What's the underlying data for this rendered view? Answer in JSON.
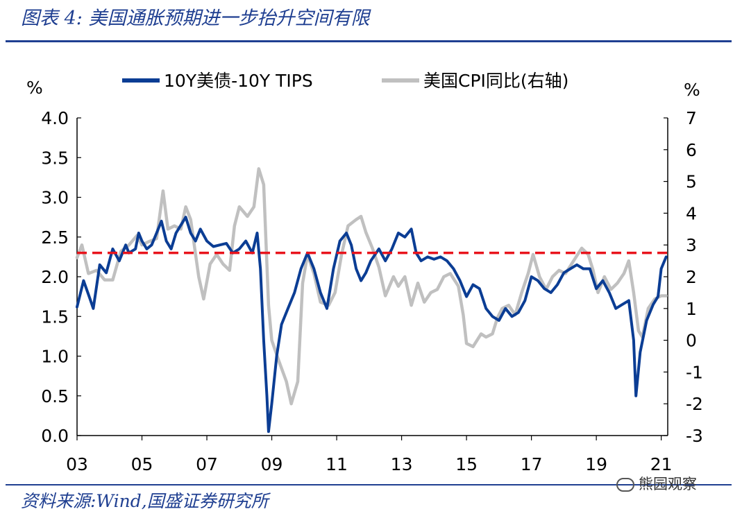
{
  "header": {
    "title": "图表 4:  美国通胀预期进一步抬升空间有限"
  },
  "footer": {
    "source": "资料来源:Wind,国盛证券研究所",
    "watermark": "熊园观察"
  },
  "colors": {
    "blue": "#0b3d94",
    "gray": "#c0c0c0",
    "red": "#e8141c",
    "accent": "#1f3f91"
  },
  "chart_data": {
    "type": "line",
    "left_unit": "%",
    "right_unit": "%",
    "x_tick_labels": [
      "03",
      "05",
      "07",
      "09",
      "11",
      "13",
      "15",
      "17",
      "19",
      "21"
    ],
    "x_range": [
      2003.0,
      2021.2
    ],
    "y_left": {
      "range": [
        0.0,
        4.0
      ],
      "ticks": [
        "0.0",
        "0.5",
        "1.0",
        "1.5",
        "2.0",
        "2.5",
        "3.0",
        "3.5",
        "4.0"
      ]
    },
    "y_right": {
      "range": [
        -3,
        7
      ],
      "ticks": [
        "-3",
        "-2",
        "-1",
        "0",
        "1",
        "2",
        "3",
        "4",
        "5",
        "6",
        "7"
      ]
    },
    "reference_line": {
      "axis": "left",
      "value": 2.3,
      "style": "dashed",
      "color": "#e8141c"
    },
    "legend": {
      "placement": "top"
    },
    "series": [
      {
        "name": "10Y美债-10Y TIPS",
        "axis": "left",
        "color": "#0b3d94",
        "points": [
          [
            2003.0,
            1.62
          ],
          [
            2003.2,
            1.95
          ],
          [
            2003.4,
            1.72
          ],
          [
            2003.5,
            1.6
          ],
          [
            2003.7,
            2.15
          ],
          [
            2003.9,
            2.05
          ],
          [
            2004.1,
            2.35
          ],
          [
            2004.3,
            2.2
          ],
          [
            2004.5,
            2.4
          ],
          [
            2004.6,
            2.3
          ],
          [
            2004.8,
            2.35
          ],
          [
            2004.9,
            2.55
          ],
          [
            2005.0,
            2.45
          ],
          [
            2005.15,
            2.35
          ],
          [
            2005.3,
            2.4
          ],
          [
            2005.45,
            2.55
          ],
          [
            2005.6,
            2.7
          ],
          [
            2005.75,
            2.45
          ],
          [
            2005.9,
            2.35
          ],
          [
            2006.05,
            2.55
          ],
          [
            2006.2,
            2.65
          ],
          [
            2006.35,
            2.75
          ],
          [
            2006.5,
            2.55
          ],
          [
            2006.65,
            2.45
          ],
          [
            2006.8,
            2.6
          ],
          [
            2007.0,
            2.45
          ],
          [
            2007.2,
            2.38
          ],
          [
            2007.4,
            2.4
          ],
          [
            2007.6,
            2.42
          ],
          [
            2007.8,
            2.3
          ],
          [
            2008.0,
            2.35
          ],
          [
            2008.2,
            2.45
          ],
          [
            2008.4,
            2.3
          ],
          [
            2008.55,
            2.55
          ],
          [
            2008.65,
            2.1
          ],
          [
            2008.75,
            1.2
          ],
          [
            2008.85,
            0.5
          ],
          [
            2008.9,
            0.05
          ],
          [
            2009.0,
            0.4
          ],
          [
            2009.15,
            1.0
          ],
          [
            2009.3,
            1.4
          ],
          [
            2009.5,
            1.6
          ],
          [
            2009.7,
            1.8
          ],
          [
            2009.9,
            2.1
          ],
          [
            2010.1,
            2.3
          ],
          [
            2010.3,
            2.1
          ],
          [
            2010.5,
            1.8
          ],
          [
            2010.7,
            1.6
          ],
          [
            2010.9,
            2.1
          ],
          [
            2011.1,
            2.45
          ],
          [
            2011.3,
            2.55
          ],
          [
            2011.45,
            2.4
          ],
          [
            2011.6,
            2.1
          ],
          [
            2011.75,
            1.95
          ],
          [
            2011.9,
            2.05
          ],
          [
            2012.05,
            2.2
          ],
          [
            2012.3,
            2.35
          ],
          [
            2012.5,
            2.2
          ],
          [
            2012.7,
            2.35
          ],
          [
            2012.9,
            2.55
          ],
          [
            2013.1,
            2.5
          ],
          [
            2013.3,
            2.6
          ],
          [
            2013.45,
            2.3
          ],
          [
            2013.6,
            2.2
          ],
          [
            2013.8,
            2.25
          ],
          [
            2014.0,
            2.22
          ],
          [
            2014.2,
            2.25
          ],
          [
            2014.4,
            2.2
          ],
          [
            2014.6,
            2.1
          ],
          [
            2014.8,
            1.95
          ],
          [
            2015.0,
            1.75
          ],
          [
            2015.2,
            1.9
          ],
          [
            2015.4,
            1.85
          ],
          [
            2015.6,
            1.6
          ],
          [
            2015.8,
            1.5
          ],
          [
            2016.0,
            1.45
          ],
          [
            2016.2,
            1.6
          ],
          [
            2016.4,
            1.5
          ],
          [
            2016.6,
            1.55
          ],
          [
            2016.8,
            1.7
          ],
          [
            2017.0,
            2.0
          ],
          [
            2017.2,
            1.95
          ],
          [
            2017.4,
            1.85
          ],
          [
            2017.6,
            1.8
          ],
          [
            2017.8,
            1.9
          ],
          [
            2018.0,
            2.05
          ],
          [
            2018.2,
            2.1
          ],
          [
            2018.4,
            2.15
          ],
          [
            2018.6,
            2.1
          ],
          [
            2018.8,
            2.1
          ],
          [
            2019.0,
            1.85
          ],
          [
            2019.2,
            1.95
          ],
          [
            2019.4,
            1.8
          ],
          [
            2019.6,
            1.6
          ],
          [
            2019.8,
            1.65
          ],
          [
            2020.0,
            1.7
          ],
          [
            2020.15,
            1.2
          ],
          [
            2020.22,
            0.5
          ],
          [
            2020.35,
            1.05
          ],
          [
            2020.55,
            1.45
          ],
          [
            2020.75,
            1.65
          ],
          [
            2020.9,
            1.75
          ],
          [
            2021.0,
            2.1
          ],
          [
            2021.15,
            2.25
          ]
        ]
      },
      {
        "name": "美国CPI同比(右轴)",
        "axis": "right",
        "color": "#c0c0c0",
        "points": [
          [
            2003.0,
            2.6
          ],
          [
            2003.15,
            3.0
          ],
          [
            2003.35,
            2.1
          ],
          [
            2003.6,
            2.2
          ],
          [
            2003.85,
            1.9
          ],
          [
            2004.1,
            1.9
          ],
          [
            2004.35,
            2.8
          ],
          [
            2004.6,
            3.0
          ],
          [
            2004.85,
            3.3
          ],
          [
            2005.0,
            3.0
          ],
          [
            2005.2,
            3.1
          ],
          [
            2005.45,
            3.2
          ],
          [
            2005.65,
            4.7
          ],
          [
            2005.8,
            3.5
          ],
          [
            2006.0,
            3.6
          ],
          [
            2006.2,
            3.5
          ],
          [
            2006.35,
            4.2
          ],
          [
            2006.5,
            3.8
          ],
          [
            2006.75,
            2.0
          ],
          [
            2006.9,
            1.3
          ],
          [
            2007.1,
            2.4
          ],
          [
            2007.3,
            2.7
          ],
          [
            2007.5,
            2.4
          ],
          [
            2007.7,
            2.2
          ],
          [
            2007.85,
            3.6
          ],
          [
            2008.0,
            4.2
          ],
          [
            2008.25,
            3.9
          ],
          [
            2008.45,
            4.2
          ],
          [
            2008.6,
            5.4
          ],
          [
            2008.75,
            4.9
          ],
          [
            2008.9,
            1.1
          ],
          [
            2009.0,
            0.0
          ],
          [
            2009.2,
            -0.6
          ],
          [
            2009.45,
            -1.3
          ],
          [
            2009.6,
            -2.0
          ],
          [
            2009.8,
            -1.3
          ],
          [
            2009.95,
            1.8
          ],
          [
            2010.1,
            2.7
          ],
          [
            2010.3,
            2.1
          ],
          [
            2010.5,
            1.2
          ],
          [
            2010.75,
            1.1
          ],
          [
            2010.95,
            1.5
          ],
          [
            2011.15,
            2.7
          ],
          [
            2011.35,
            3.6
          ],
          [
            2011.6,
            3.8
          ],
          [
            2011.75,
            3.9
          ],
          [
            2011.9,
            3.4
          ],
          [
            2012.1,
            2.9
          ],
          [
            2012.3,
            2.3
          ],
          [
            2012.5,
            1.4
          ],
          [
            2012.75,
            2.0
          ],
          [
            2012.9,
            1.7
          ],
          [
            2013.1,
            2.0
          ],
          [
            2013.3,
            1.1
          ],
          [
            2013.5,
            1.8
          ],
          [
            2013.7,
            1.2
          ],
          [
            2013.9,
            1.5
          ],
          [
            2014.1,
            1.6
          ],
          [
            2014.3,
            2.0
          ],
          [
            2014.5,
            2.1
          ],
          [
            2014.75,
            1.7
          ],
          [
            2014.9,
            0.8
          ],
          [
            2015.0,
            -0.1
          ],
          [
            2015.2,
            -0.2
          ],
          [
            2015.45,
            0.2
          ],
          [
            2015.6,
            0.1
          ],
          [
            2015.8,
            0.2
          ],
          [
            2015.95,
            0.7
          ],
          [
            2016.1,
            1.0
          ],
          [
            2016.3,
            1.1
          ],
          [
            2016.5,
            0.8
          ],
          [
            2016.7,
            1.5
          ],
          [
            2016.9,
            2.1
          ],
          [
            2017.05,
            2.7
          ],
          [
            2017.25,
            2.0
          ],
          [
            2017.45,
            1.6
          ],
          [
            2017.65,
            2.0
          ],
          [
            2017.85,
            2.2
          ],
          [
            2018.05,
            2.1
          ],
          [
            2018.3,
            2.5
          ],
          [
            2018.55,
            2.9
          ],
          [
            2018.75,
            2.7
          ],
          [
            2018.9,
            2.2
          ],
          [
            2019.05,
            1.5
          ],
          [
            2019.25,
            2.0
          ],
          [
            2019.45,
            1.6
          ],
          [
            2019.65,
            1.8
          ],
          [
            2019.85,
            2.1
          ],
          [
            2020.0,
            2.5
          ],
          [
            2020.15,
            1.5
          ],
          [
            2020.3,
            0.3
          ],
          [
            2020.42,
            0.1
          ],
          [
            2020.6,
            1.0
          ],
          [
            2020.8,
            1.3
          ],
          [
            2021.0,
            1.4
          ],
          [
            2021.15,
            1.4
          ]
        ]
      }
    ]
  }
}
